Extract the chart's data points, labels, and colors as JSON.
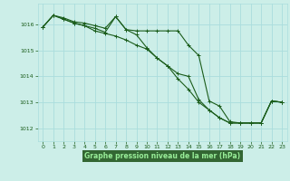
{
  "title": "Graphe pression niveau de la mer (hPa)",
  "bg_color": "#cceee8",
  "plot_bg_color": "#cceee8",
  "grid_color": "#aadddd",
  "line_color": "#1a5c1a",
  "label_bg_color": "#336633",
  "label_text_color": "#99ee99",
  "x_ticks": [
    0,
    1,
    2,
    3,
    4,
    5,
    6,
    7,
    8,
    9,
    10,
    11,
    12,
    13,
    14,
    15,
    16,
    17,
    18,
    19,
    20,
    21,
    22,
    23
  ],
  "ylim": [
    1011.5,
    1016.8
  ],
  "yticks": [
    1012,
    1013,
    1014,
    1015,
    1016
  ],
  "series": [
    [
      1015.9,
      1016.35,
      1016.25,
      1016.1,
      1016.05,
      1015.95,
      1015.85,
      1016.3,
      1015.8,
      1015.75,
      1015.75,
      1015.75,
      1015.75,
      1015.75,
      1015.2,
      1014.8,
      1013.05,
      1012.85,
      1012.25,
      1012.2,
      1012.2,
      1012.2,
      1013.05,
      1013.0
    ],
    [
      1015.9,
      1016.35,
      1016.2,
      1016.05,
      1015.95,
      1015.85,
      1015.7,
      1016.3,
      1015.8,
      1015.6,
      1015.1,
      1014.7,
      1014.4,
      1014.1,
      1014.0,
      1013.1,
      1012.7,
      1012.4,
      1012.2,
      1012.2,
      1012.2,
      1012.2,
      1013.05,
      1013.0
    ],
    [
      1015.9,
      1016.35,
      1016.2,
      1016.05,
      1015.95,
      1015.75,
      1015.65,
      1015.55,
      1015.4,
      1015.2,
      1015.05,
      1014.7,
      1014.4,
      1013.9,
      1013.5,
      1013.0,
      1012.7,
      1012.4,
      1012.2,
      1012.2,
      1012.2,
      1012.2,
      1013.05,
      1013.0
    ]
  ]
}
